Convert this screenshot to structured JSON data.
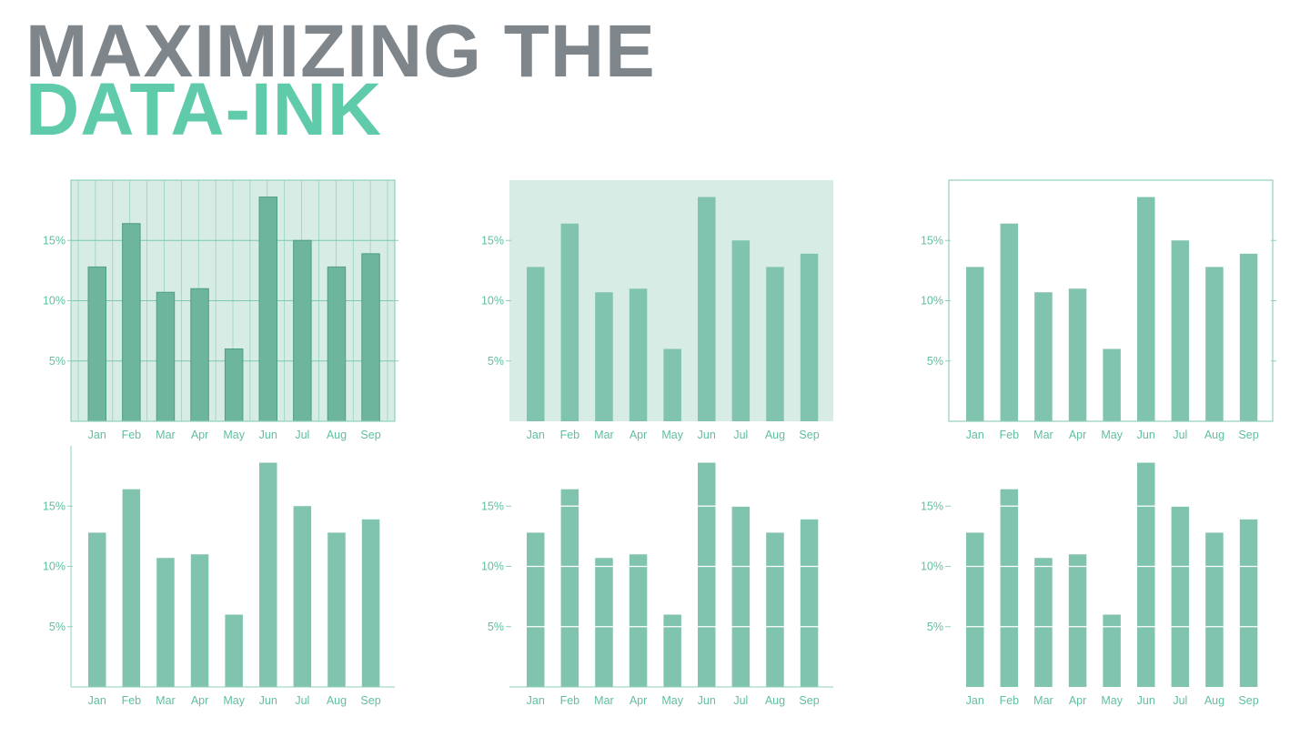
{
  "title": {
    "line1": "MAXIMIZING THE",
    "line2": "DATA-INK"
  },
  "colors": {
    "title_gray": "#7e858b",
    "title_green": "#5fcbaa",
    "bar_fill": "#80c3ae",
    "bar_fill_dark": "#6db59d",
    "plot_background": "#d8ece6",
    "axis_line": "#8fd0bb",
    "grid_line": "#7ec8ae",
    "tick_text": "#5fbf9f"
  },
  "chart_data": [
    {
      "type": "bar",
      "categories": [
        "Jan",
        "Feb",
        "Mar",
        "Apr",
        "May",
        "Jun",
        "Jul",
        "Aug",
        "Sep"
      ],
      "values": [
        12.8,
        16.4,
        10.7,
        11.0,
        6.0,
        18.6,
        15.0,
        12.8,
        13.9
      ],
      "yticks": [
        "5%",
        "10%",
        "15%"
      ],
      "ylim": [
        0,
        20
      ],
      "style": {
        "background": true,
        "frame": "box",
        "hgrid": true,
        "vgrid": true,
        "bar_outline": true,
        "white_grid_over_bars": false
      }
    },
    {
      "type": "bar",
      "categories": [
        "Jan",
        "Feb",
        "Mar",
        "Apr",
        "May",
        "Jun",
        "Jul",
        "Aug",
        "Sep"
      ],
      "values": [
        12.8,
        16.4,
        10.7,
        11.0,
        6.0,
        18.6,
        15.0,
        12.8,
        13.9
      ],
      "yticks": [
        "5%",
        "10%",
        "15%"
      ],
      "ylim": [
        0,
        20
      ],
      "style": {
        "background": true,
        "frame": "none",
        "hgrid": false,
        "vgrid": false,
        "bar_outline": false,
        "white_grid_over_bars": false
      }
    },
    {
      "type": "bar",
      "categories": [
        "Jan",
        "Feb",
        "Mar",
        "Apr",
        "May",
        "Jun",
        "Jul",
        "Aug",
        "Sep"
      ],
      "values": [
        12.8,
        16.4,
        10.7,
        11.0,
        6.0,
        18.6,
        15.0,
        12.8,
        13.9
      ],
      "yticks": [
        "5%",
        "10%",
        "15%"
      ],
      "ylim": [
        0,
        20
      ],
      "style": {
        "background": false,
        "frame": "box",
        "hgrid": false,
        "vgrid": false,
        "bar_outline": false,
        "white_grid_over_bars": false
      }
    },
    {
      "type": "bar",
      "categories": [
        "Jan",
        "Feb",
        "Mar",
        "Apr",
        "May",
        "Jun",
        "Jul",
        "Aug",
        "Sep"
      ],
      "values": [
        12.8,
        16.4,
        10.7,
        11.0,
        6.0,
        18.6,
        15.0,
        12.8,
        13.9
      ],
      "yticks": [
        "5%",
        "10%",
        "15%"
      ],
      "ylim": [
        0,
        20
      ],
      "style": {
        "background": false,
        "frame": "left-bottom",
        "hgrid": false,
        "vgrid": false,
        "bar_outline": false,
        "white_grid_over_bars": false
      }
    },
    {
      "type": "bar",
      "categories": [
        "Jan",
        "Feb",
        "Mar",
        "Apr",
        "May",
        "Jun",
        "Jul",
        "Aug",
        "Sep"
      ],
      "values": [
        12.8,
        16.4,
        10.7,
        11.0,
        6.0,
        18.6,
        15.0,
        12.8,
        13.9
      ],
      "yticks": [
        "5%",
        "10%",
        "15%"
      ],
      "ylim": [
        0,
        20
      ],
      "style": {
        "background": false,
        "frame": "bottom",
        "hgrid": false,
        "vgrid": false,
        "bar_outline": false,
        "white_grid_over_bars": true
      }
    },
    {
      "type": "bar",
      "categories": [
        "Jan",
        "Feb",
        "Mar",
        "Apr",
        "May",
        "Jun",
        "Jul",
        "Aug",
        "Sep"
      ],
      "values": [
        12.8,
        16.4,
        10.7,
        11.0,
        6.0,
        18.6,
        15.0,
        12.8,
        13.9
      ],
      "yticks": [
        "5%",
        "10%",
        "15%"
      ],
      "ylim": [
        0,
        20
      ],
      "style": {
        "background": false,
        "frame": "none",
        "hgrid": false,
        "vgrid": false,
        "bar_outline": false,
        "white_grid_over_bars": true
      }
    }
  ]
}
